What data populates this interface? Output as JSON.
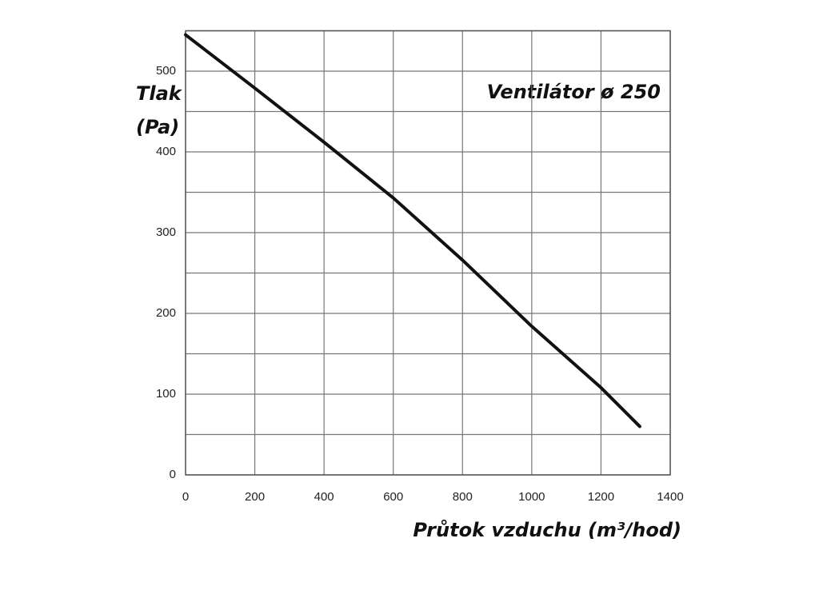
{
  "chart_data": {
    "type": "line",
    "title": "Ventilátor ø 250",
    "y_label": [
      "Tlak",
      "(Pa)"
    ],
    "x_label": "Průtok vzduchu (m³/hod)",
    "x": [
      0,
      200,
      400,
      600,
      800,
      1000,
      1200,
      1312
    ],
    "series": [
      {
        "color": "#111111",
        "values": [
          545,
          479,
          412,
          343,
          266,
          184,
          108,
          60
        ]
      }
    ],
    "xlim": [
      0,
      1400
    ],
    "xticks": [
      0,
      200,
      400,
      600,
      800,
      1000,
      1200,
      1400
    ],
    "ylim": [
      0,
      550
    ],
    "yticks": [
      0,
      100,
      200,
      300,
      400,
      500
    ],
    "y_minor_grid": [
      50,
      150,
      250,
      350,
      450,
      550
    ],
    "grid": true
  }
}
